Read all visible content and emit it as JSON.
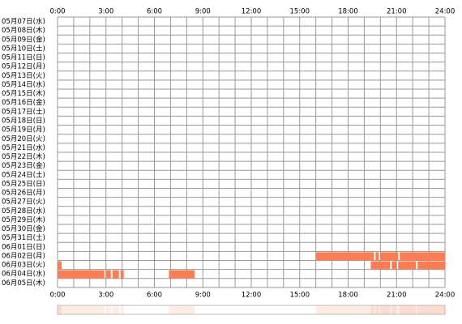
{
  "chart_data": {
    "type": "timeline",
    "categories": [
      "05月07日(水)",
      "05月08日(木)",
      "05月09日(金)",
      "05月10日(土)",
      "05月11日(日)",
      "05月12日(月)",
      "05月13日(火)",
      "05月14日(水)",
      "05月15日(木)",
      "05月16日(金)",
      "05月17日(土)",
      "05月18日(日)",
      "05月19日(月)",
      "05月20日(火)",
      "05月21日(水)",
      "05月22日(木)",
      "05月23日(金)",
      "05月24日(土)",
      "05月25日(日)",
      "05月26日(月)",
      "05月27日(火)",
      "05月28日(水)",
      "05月29日(木)",
      "05月30日(金)",
      "05月31日(土)",
      "06月01日(日)",
      "06月02日(月)",
      "06月03日(火)",
      "06月04日(水)",
      "06月05日(木)"
    ],
    "segments": [
      [],
      [],
      [],
      [],
      [],
      [],
      [],
      [],
      [],
      [],
      [],
      [],
      [],
      [],
      [],
      [],
      [],
      [],
      [],
      [],
      [],
      [],
      [],
      [],
      [],
      [],
      [
        [
          16.0,
          19.6
        ],
        [
          19.7,
          19.9
        ],
        [
          20.0,
          21.1
        ],
        [
          21.2,
          24
        ]
      ],
      [
        [
          0,
          0.25
        ],
        [
          19.4,
          20.6
        ],
        [
          20.7,
          21.0
        ],
        [
          21.1,
          22.2
        ],
        [
          22.3,
          24
        ]
      ],
      [
        [
          0,
          2.9
        ],
        [
          3.0,
          3.3
        ],
        [
          3.4,
          3.8
        ],
        [
          3.9,
          4.1
        ],
        [
          6.9,
          8.5
        ]
      ],
      []
    ],
    "color": "#fa7d53",
    "xlim": [
      0,
      24
    ],
    "xticks": [
      {
        "value": 0,
        "label": "0:00"
      },
      {
        "value": 3,
        "label": "3:00"
      },
      {
        "value": 6,
        "label": "6:00"
      },
      {
        "value": 9,
        "label": "9:00"
      },
      {
        "value": 12,
        "label": "12:00"
      },
      {
        "value": 15,
        "label": "15:00"
      },
      {
        "value": 18,
        "label": "18:00"
      },
      {
        "value": 21,
        "label": "21:00"
      },
      {
        "value": 24,
        "label": "24:00"
      }
    ],
    "xgrid": [
      0,
      1,
      2,
      3,
      4,
      5,
      6,
      7,
      8,
      9,
      10,
      11,
      12,
      13,
      14,
      15,
      16,
      17,
      18,
      19,
      20,
      21,
      22,
      23,
      24
    ]
  }
}
